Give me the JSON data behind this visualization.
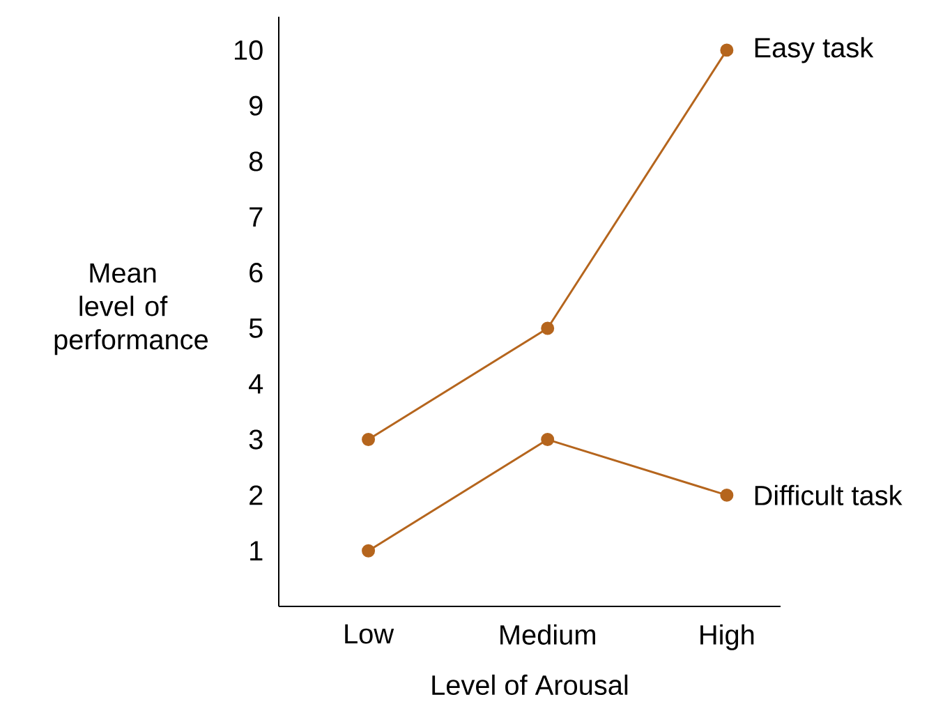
{
  "chart_data": {
    "type": "line",
    "xlabel": "Level of Arousal",
    "ylabel": "Mean level of performance",
    "categories": [
      "Low",
      "Medium",
      "High"
    ],
    "ylim": [
      0,
      10.6
    ],
    "yticks": [
      1,
      2,
      3,
      4,
      5,
      6,
      7,
      8,
      9,
      10
    ],
    "marker": "circle",
    "line_style": "solid",
    "grid": false,
    "legend": false,
    "series": [
      {
        "name": "Easy task",
        "color": "#b5651d",
        "values": [
          3,
          5,
          10
        ]
      },
      {
        "name": "Difficult task",
        "color": "#b5651d",
        "values": [
          1,
          3,
          2
        ]
      }
    ]
  }
}
